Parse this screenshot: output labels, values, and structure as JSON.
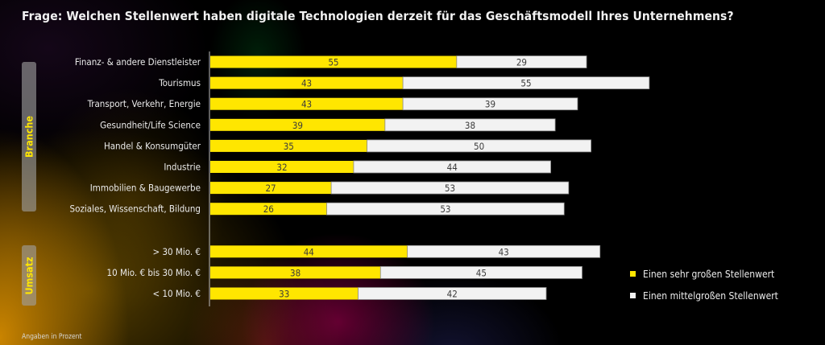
{
  "title": "Frage: Welchen Stellenwert haben digitale Technologien derzeit für das Geschäftsmodell Ihres Unternehmens?",
  "footnote": "Angaben in Prozent",
  "groups": [
    {
      "label": "Branche",
      "count": 8
    },
    {
      "label": "Umsatz",
      "count": 3
    }
  ],
  "legend": [
    {
      "label": "Einen sehr großen Stellenwert",
      "color": "#ffe600"
    },
    {
      "label": "Einen mittelgroßen Stellenwert",
      "color": "#f2f2f2"
    }
  ],
  "chart_data": {
    "type": "bar",
    "orientation": "horizontal",
    "stacked": true,
    "title": "Frage: Welchen Stellenwert haben digitale Technologien derzeit für das Geschäftsmodell Ihres Unternehmens?",
    "xlabel": "",
    "ylabel": "",
    "unit": "Prozent",
    "xlim": [
      0,
      100
    ],
    "grid": false,
    "legend_position": "right",
    "categories": [
      "Finanz- & andere Dienstleister",
      "Tourismus",
      "Transport, Verkehr, Energie",
      "Gesundheit/Life Science",
      "Handel & Konsumgüter",
      "Industrie",
      "Immobilien & Baugewerbe",
      "Soziales, Wissenschaft, Bildung",
      "> 30 Mio. €",
      "10 Mio. € bis 30 Mio. €",
      "< 10 Mio. €"
    ],
    "category_groups": [
      "Branche",
      "Branche",
      "Branche",
      "Branche",
      "Branche",
      "Branche",
      "Branche",
      "Branche",
      "Umsatz",
      "Umsatz",
      "Umsatz"
    ],
    "series": [
      {
        "name": "Einen sehr großen Stellenwert",
        "color": "#ffe600",
        "values": [
          55,
          43,
          43,
          39,
          35,
          32,
          27,
          26,
          44,
          38,
          33
        ]
      },
      {
        "name": "Einen mittelgroßen Stellenwert",
        "color": "#f2f2f2",
        "values": [
          29,
          55,
          39,
          38,
          50,
          44,
          53,
          53,
          43,
          45,
          42
        ]
      }
    ]
  }
}
